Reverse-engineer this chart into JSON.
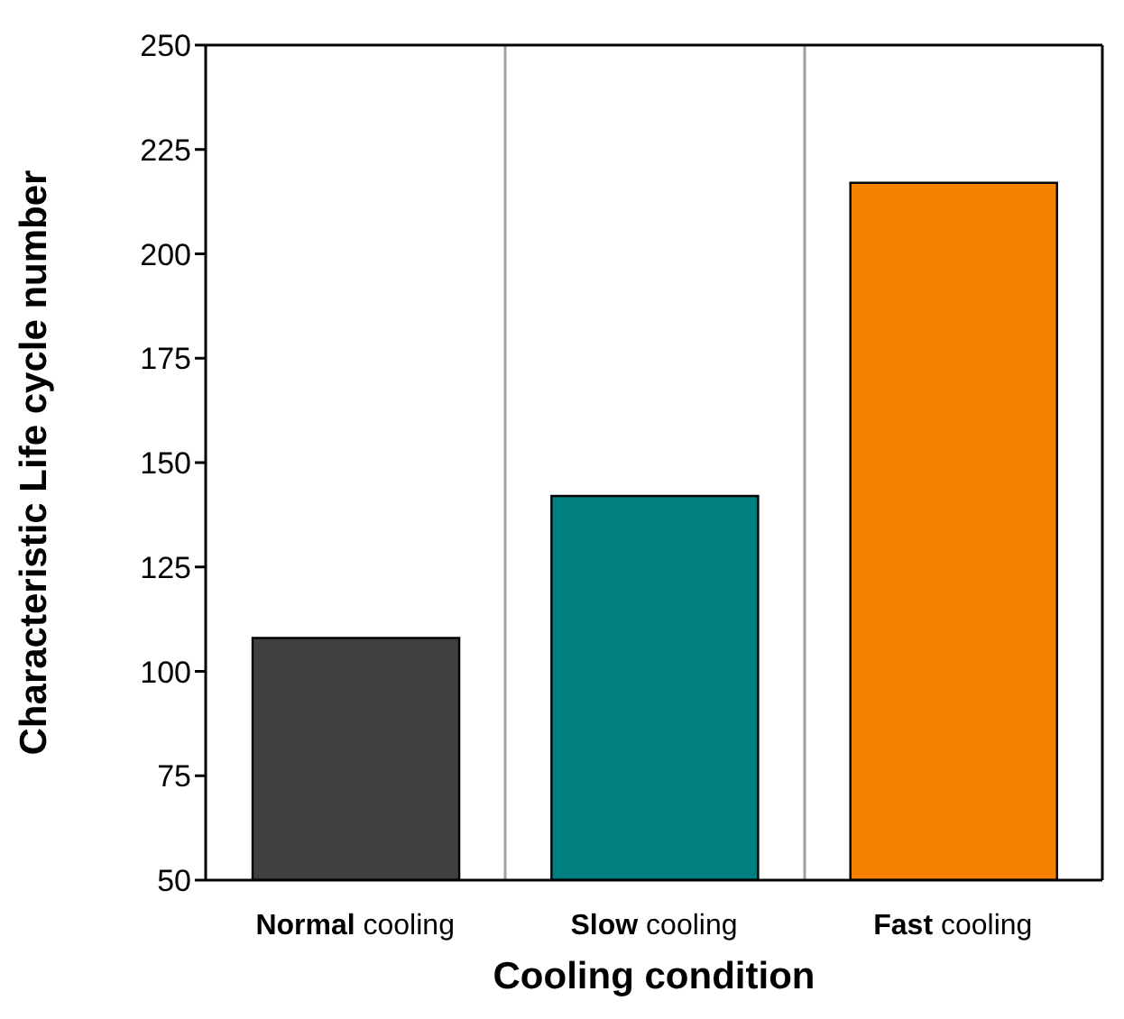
{
  "chart_data": {
    "type": "bar",
    "xlabel": "Cooling condition",
    "ylabel": "Characteristic Life cycle number",
    "categories": [
      "Normal cooling",
      "Slow cooling",
      "Fast cooling"
    ],
    "values": [
      108,
      142,
      217
    ],
    "colors": [
      "#404040",
      "#008080",
      "#f58200"
    ],
    "ylim": [
      50,
      250
    ],
    "yticks": [
      50,
      75,
      100,
      125,
      150,
      175,
      200,
      225,
      250
    ],
    "grid": "x"
  }
}
